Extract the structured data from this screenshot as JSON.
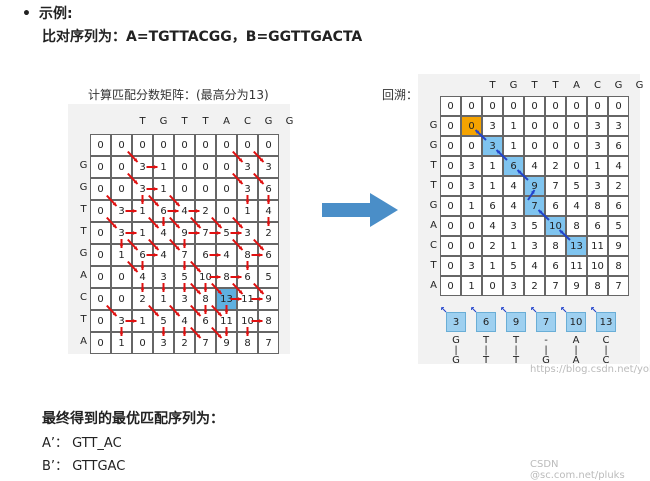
{
  "header": {
    "bullet": "示例:",
    "subtitle": "比对序列为：A=TGTTACGG，B=GGTTGACTA"
  },
  "left": {
    "caption": "计算匹配分数矩阵：(最高分为13)",
    "col_labels": [
      "T",
      "G",
      "T",
      "T",
      "A",
      "C",
      "G",
      "G"
    ],
    "row_labels": [
      "",
      "G",
      "G",
      "T",
      "T",
      "G",
      "A",
      "C",
      "T",
      "A"
    ],
    "matrix": [
      [
        "0",
        "0",
        "0",
        "0",
        "0",
        "0",
        "0",
        "0",
        "0"
      ],
      [
        "0",
        "0",
        "3",
        "1",
        "0",
        "0",
        "0",
        "3",
        "3"
      ],
      [
        "0",
        "0",
        "3",
        "1",
        "0",
        "0",
        "0",
        "3",
        "6"
      ],
      [
        "0",
        "3",
        "1",
        "6",
        "4",
        "2",
        "0",
        "1",
        "4"
      ],
      [
        "0",
        "3",
        "1",
        "4",
        "9",
        "7",
        "5",
        "3",
        "2"
      ],
      [
        "0",
        "1",
        "6",
        "4",
        "7",
        "6",
        "4",
        "8",
        "6"
      ],
      [
        "0",
        "0",
        "4",
        "3",
        "5",
        "10",
        "8",
        "6",
        "5"
      ],
      [
        "0",
        "0",
        "2",
        "1",
        "3",
        "8",
        "13",
        "11",
        "9"
      ],
      [
        "0",
        "3",
        "1",
        "5",
        "4",
        "6",
        "11",
        "10",
        "8"
      ],
      [
        "0",
        "1",
        "0",
        "3",
        "2",
        "7",
        "9",
        "8",
        "7"
      ]
    ]
  },
  "right": {
    "caption": "回溯：",
    "col_labels": [
      "T",
      "G",
      "T",
      "T",
      "A",
      "C",
      "G",
      "G"
    ],
    "row_labels": [
      "",
      "G",
      "G",
      "T",
      "T",
      "G",
      "A",
      "C",
      "T",
      "A"
    ],
    "matrix": [
      [
        "0",
        "0",
        "0",
        "0",
        "0",
        "0",
        "0",
        "0",
        "0"
      ],
      [
        "0",
        "0",
        "3",
        "1",
        "0",
        "0",
        "0",
        "3",
        "3"
      ],
      [
        "0",
        "0",
        "3",
        "1",
        "0",
        "0",
        "0",
        "3",
        "6"
      ],
      [
        "0",
        "3",
        "1",
        "6",
        "4",
        "2",
        "0",
        "1",
        "4"
      ],
      [
        "0",
        "3",
        "1",
        "4",
        "9",
        "7",
        "5",
        "3",
        "2"
      ],
      [
        "0",
        "1",
        "6",
        "4",
        "7",
        "6",
        "4",
        "8",
        "6"
      ],
      [
        "0",
        "0",
        "4",
        "3",
        "5",
        "10",
        "8",
        "6",
        "5"
      ],
      [
        "0",
        "0",
        "2",
        "1",
        "3",
        "8",
        "13",
        "11",
        "9"
      ],
      [
        "0",
        "3",
        "1",
        "5",
        "4",
        "6",
        "11",
        "10",
        "8"
      ],
      [
        "0",
        "1",
        "0",
        "3",
        "2",
        "7",
        "9",
        "8",
        "7"
      ]
    ],
    "traceback_values": [
      "3",
      "6",
      "9",
      "7",
      "10",
      "13"
    ],
    "alignment_top": [
      "G",
      "T",
      "T",
      "-",
      "A",
      "C"
    ],
    "alignment_bottom": [
      "G",
      "T",
      "T",
      "G",
      "A",
      "C"
    ]
  },
  "bottom": {
    "title": "最终得到的最优匹配序列为：",
    "a_label": "A’",
    "a_value": "：  GTT_AC",
    "b_label": "B’",
    "b_value": "：  GTTGAC"
  },
  "watermarks": {
    "mid": "https://blog.csdn.net/yohjob",
    "bottom": "CSDN @sc.com.net/pluks"
  },
  "colors": {
    "arrow_red": "#e01010",
    "highlight": "#7fc4ef",
    "max_cell": "#5fb0e0",
    "start_cell": "#f5a300",
    "big_arrow": "#4a8ec8"
  }
}
